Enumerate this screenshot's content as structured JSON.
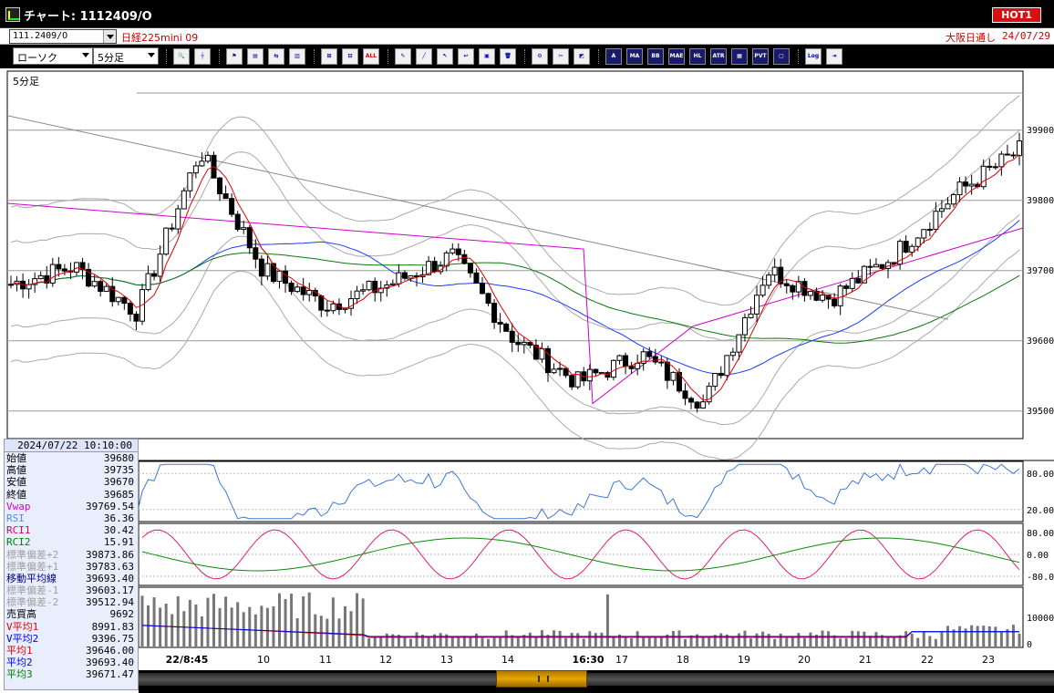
{
  "window": {
    "title": "チャート: 1112409/O",
    "hot_label": "HOT1"
  },
  "symbol_bar": {
    "symbol_code": "111.2409/O",
    "instrument": "日経225mini 09",
    "session": "大阪日通し",
    "date": "24/07/29"
  },
  "toolbar": {
    "chart_type": "ローソク",
    "timeframe": "5分足",
    "buttons": [
      {
        "name": "zoom",
        "label": "🔍"
      },
      {
        "name": "crosshair",
        "label": "┼"
      },
      {
        "name": "candle-mark",
        "label": "⚑"
      },
      {
        "name": "chart-style",
        "label": "▤"
      },
      {
        "name": "compare",
        "label": "⇆"
      },
      {
        "name": "lock",
        "label": "▥"
      },
      {
        "name": "bar-mode",
        "label": "⊞"
      },
      {
        "name": "bar-mode-2",
        "label": "⊟"
      },
      {
        "name": "all",
        "label": "ALL"
      },
      {
        "name": "pen",
        "label": "✎"
      },
      {
        "name": "line-tool",
        "label": "╱"
      },
      {
        "name": "pointer",
        "label": "↖"
      },
      {
        "name": "undo",
        "label": "↩"
      },
      {
        "name": "memo",
        "label": "▣"
      },
      {
        "name": "trash",
        "label": "🗑"
      },
      {
        "name": "settings",
        "label": "⚙"
      },
      {
        "name": "tools",
        "label": "✂"
      },
      {
        "name": "color",
        "label": "◩"
      },
      {
        "name": "indicator-1",
        "label": "A"
      },
      {
        "name": "indicator-ma",
        "label": "MA"
      },
      {
        "name": "indicator-bb",
        "label": "BB"
      },
      {
        "name": "indicator-mae",
        "label": "MAE"
      },
      {
        "name": "indicator-hl",
        "label": "HL"
      },
      {
        "name": "indicator-atr",
        "label": "ATR"
      },
      {
        "name": "indicator-2",
        "label": "▦"
      },
      {
        "name": "indicator-pvt",
        "label": "PVT"
      },
      {
        "name": "indicator-frame",
        "label": "▢"
      },
      {
        "name": "log",
        "label": "Log"
      },
      {
        "name": "exit",
        "label": "⇥"
      }
    ]
  },
  "chart": {
    "period_label": "5分足",
    "price_axis": [
      "39900",
      "39800",
      "39700",
      "39600",
      "39500"
    ],
    "rsi_axis": [
      "80.00",
      "20.00"
    ],
    "rci_axis": [
      "80.00",
      "0.00",
      "-80.00"
    ],
    "volume_axis": [
      "10000",
      "0"
    ],
    "time_axis": [
      "22/8:45",
      "10",
      "11",
      "12",
      "13",
      "14",
      "16:30",
      "17",
      "18",
      "19",
      "20",
      "21",
      "22",
      "23"
    ]
  },
  "info_panel": {
    "datetime": "2024/07/22 10:10:00",
    "rows": [
      {
        "label": "始値",
        "value": "39680",
        "color": "#000000"
      },
      {
        "label": "高値",
        "value": "39735",
        "color": "#000000"
      },
      {
        "label": "安値",
        "value": "39670",
        "color": "#000000"
      },
      {
        "label": "終値",
        "value": "39685",
        "color": "#000000"
      },
      {
        "label": "Vwap",
        "value": "39769.54",
        "color": "#e000e0"
      },
      {
        "label": "RSI",
        "value": "36.36",
        "color": "#4a90d9"
      },
      {
        "label": "RCI1",
        "value": "30.42",
        "color": "#e00060"
      },
      {
        "label": "RCI2",
        "value": "15.91",
        "color": "#008000"
      },
      {
        "label": "標準偏差+2",
        "value": "39873.86",
        "color": "#a0a0a0"
      },
      {
        "label": "標準偏差+1",
        "value": "39783.63",
        "color": "#a0a0a0"
      },
      {
        "label": "移動平均線",
        "value": "39693.40",
        "color": "#000080"
      },
      {
        "label": "標準偏差-1",
        "value": "39603.17",
        "color": "#a0a0a0"
      },
      {
        "label": "標準偏差-2",
        "value": "39512.94",
        "color": "#a0a0a0"
      },
      {
        "label": "売買高",
        "value": "9692",
        "color": "#000000"
      },
      {
        "label": "V平均1",
        "value": "8991.83",
        "color": "#e00000"
      },
      {
        "label": "V平均2",
        "value": "9396.75",
        "color": "#0000e0"
      },
      {
        "label": "平均1",
        "value": "39646.00",
        "color": "#e00000"
      },
      {
        "label": "平均2",
        "value": "39693.40",
        "color": "#0000e0"
      },
      {
        "label": "平均3",
        "value": "39671.47",
        "color": "#008000"
      }
    ]
  },
  "chart_data": {
    "type": "line",
    "title": "",
    "xlabel": "",
    "ylabel": "",
    "ylim": [
      39460,
      39960
    ],
    "series": [
      {
        "x": [
          0,
          10,
          20,
          30,
          40,
          50,
          60,
          70,
          80,
          90,
          100,
          110,
          120,
          130,
          140,
          150,
          160
        ],
        "values": [
          39680,
          39705,
          39640,
          39870,
          39700,
          39650,
          39680,
          39720,
          39600,
          39540,
          39580,
          39510,
          39700,
          39660,
          39720,
          39810,
          39870
        ]
      }
    ]
  }
}
